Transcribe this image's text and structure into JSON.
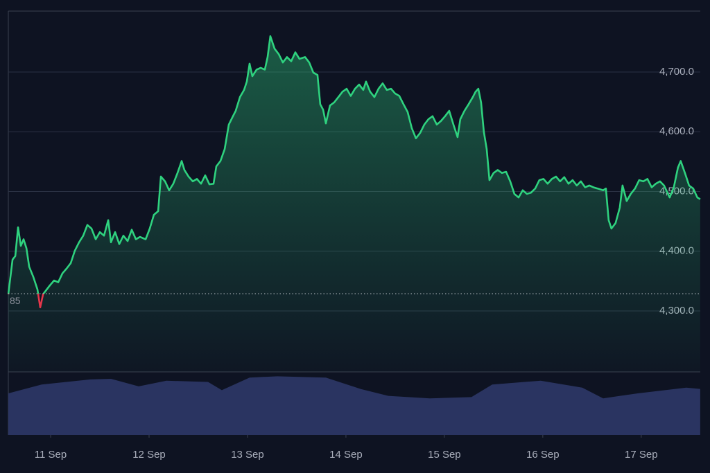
{
  "chart_data": {
    "type": "line",
    "x": [
      -0.43,
      -0.387,
      -0.359,
      -0.331,
      -0.303,
      -0.275,
      -0.246,
      -0.218,
      -0.176,
      -0.134,
      -0.106,
      -0.077,
      -0.049,
      -0.007,
      0.035,
      0.077,
      0.12,
      0.162,
      0.204,
      0.246,
      0.289,
      0.331,
      0.373,
      0.415,
      0.458,
      0.5,
      0.542,
      0.585,
      0.613,
      0.655,
      0.697,
      0.739,
      0.782,
      0.824,
      0.866,
      0.908,
      0.965,
      1.007,
      1.049,
      1.092,
      1.12,
      1.162,
      1.204,
      1.246,
      1.289,
      1.331,
      1.359,
      1.401,
      1.444,
      1.486,
      1.528,
      1.57,
      1.613,
      1.655,
      1.683,
      1.725,
      1.768,
      1.81,
      1.852,
      1.88,
      1.923,
      1.965,
      1.993,
      2.021,
      2.049,
      2.092,
      2.134,
      2.176,
      2.204,
      2.232,
      2.275,
      2.317,
      2.359,
      2.401,
      2.444,
      2.486,
      2.528,
      2.585,
      2.627,
      2.669,
      2.711,
      2.739,
      2.768,
      2.796,
      2.838,
      2.88,
      2.923,
      2.965,
      3.007,
      3.049,
      3.092,
      3.134,
      3.176,
      3.204,
      3.246,
      3.289,
      3.331,
      3.373,
      3.415,
      3.458,
      3.5,
      3.542,
      3.585,
      3.627,
      3.669,
      3.711,
      3.754,
      3.796,
      3.838,
      3.88,
      3.923,
      3.965,
      4.007,
      4.049,
      4.092,
      4.134,
      4.162,
      4.204,
      4.246,
      4.289,
      4.317,
      4.345,
      4.373,
      4.401,
      4.43,
      4.458,
      4.5,
      4.542,
      4.585,
      4.627,
      4.669,
      4.711,
      4.754,
      4.796,
      4.838,
      4.88,
      4.923,
      4.965,
      5.007,
      5.049,
      5.092,
      5.134,
      5.176,
      5.218,
      5.261,
      5.303,
      5.345,
      5.387,
      5.43,
      5.472,
      5.514,
      5.556,
      5.613,
      5.641,
      5.669,
      5.697,
      5.739,
      5.782,
      5.81,
      5.852,
      5.894,
      5.937,
      5.979,
      6.021,
      6.063,
      6.106,
      6.148,
      6.19,
      6.232,
      6.289,
      6.331,
      6.373,
      6.401,
      6.444,
      6.486,
      6.528,
      6.57,
      6.599
    ],
    "series": [
      {
        "color": "#2fd27f",
        "down_color": "#e5374b",
        "values": [
          4328,
          4386,
          4392,
          4440,
          4409,
          4420,
          4405,
          4374,
          4357,
          4336,
          4306,
          4328,
          4334,
          4343,
          4351,
          4348,
          4363,
          4371,
          4380,
          4401,
          4415,
          4426,
          4444,
          4438,
          4420,
          4432,
          4426,
          4452,
          4415,
          4432,
          4412,
          4426,
          4417,
          4436,
          4420,
          4424,
          4420,
          4438,
          4461,
          4467,
          4525,
          4517,
          4502,
          4513,
          4531,
          4551,
          4536,
          4525,
          4517,
          4521,
          4513,
          4527,
          4512,
          4513,
          4542,
          4551,
          4571,
          4612,
          4626,
          4635,
          4658,
          4670,
          4684,
          4714,
          4693,
          4704,
          4707,
          4704,
          4725,
          4760,
          4739,
          4730,
          4716,
          4725,
          4718,
          4733,
          4722,
          4725,
          4716,
          4699,
          4695,
          4646,
          4637,
          4614,
          4644,
          4649,
          4658,
          4667,
          4672,
          4660,
          4672,
          4679,
          4670,
          4684,
          4667,
          4658,
          4672,
          4681,
          4670,
          4672,
          4664,
          4660,
          4646,
          4633,
          4606,
          4589,
          4598,
          4612,
          4621,
          4626,
          4612,
          4618,
          4626,
          4635,
          4612,
          4591,
          4621,
          4635,
          4646,
          4658,
          4667,
          4672,
          4649,
          4600,
          4571,
          4519,
          4531,
          4536,
          4531,
          4533,
          4517,
          4496,
          4490,
          4502,
          4496,
          4498,
          4505,
          4519,
          4521,
          4513,
          4521,
          4525,
          4517,
          4524,
          4513,
          4519,
          4510,
          4517,
          4507,
          4510,
          4507,
          4505,
          4502,
          4505,
          4452,
          4438,
          4447,
          4473,
          4510,
          4484,
          4496,
          4505,
          4519,
          4517,
          4521,
          4507,
          4513,
          4517,
          4510,
          4490,
          4507,
          4540,
          4551,
          4531,
          4510,
          4505,
          4490,
          4487
        ]
      }
    ],
    "baseline": {
      "value": 4328.85,
      "label": "85"
    },
    "xlim": [
      -0.43,
      6.6
    ],
    "xticks": [
      {
        "value": 0,
        "label": "11 Sep"
      },
      {
        "value": 1,
        "label": "12 Sep"
      },
      {
        "value": 2,
        "label": "13 Sep"
      },
      {
        "value": 3,
        "label": "14 Sep"
      },
      {
        "value": 4,
        "label": "15 Sep"
      },
      {
        "value": 5,
        "label": "16 Sep"
      },
      {
        "value": 6,
        "label": "17 Sep"
      }
    ],
    "ylim": [
      4198,
      4802
    ],
    "yticks": [
      {
        "value": 4300,
        "label": "4,300.0"
      },
      {
        "value": 4400,
        "label": "4,400.0"
      },
      {
        "value": 4500,
        "label": "4,500.0"
      },
      {
        "value": 4600,
        "label": "4,600.0"
      },
      {
        "value": 4700,
        "label": "4,700.0"
      }
    ],
    "grid": true,
    "volume": {
      "color": "#2a3461",
      "vlim": [
        0,
        100
      ],
      "x": [
        -0.43,
        -0.092,
        0.401,
        0.613,
        0.894,
        1.176,
        1.599,
        1.739,
        2.021,
        2.303,
        2.796,
        3.148,
        3.43,
        3.852,
        4.275,
        4.486,
        4.979,
        5.401,
        5.613,
        5.965,
        6.458,
        6.599
      ],
      "values": [
        66,
        80,
        88,
        89,
        77,
        86,
        84,
        71,
        91,
        93,
        91,
        73,
        62,
        58,
        60,
        80,
        86,
        75,
        58,
        66,
        75,
        73
      ]
    }
  }
}
